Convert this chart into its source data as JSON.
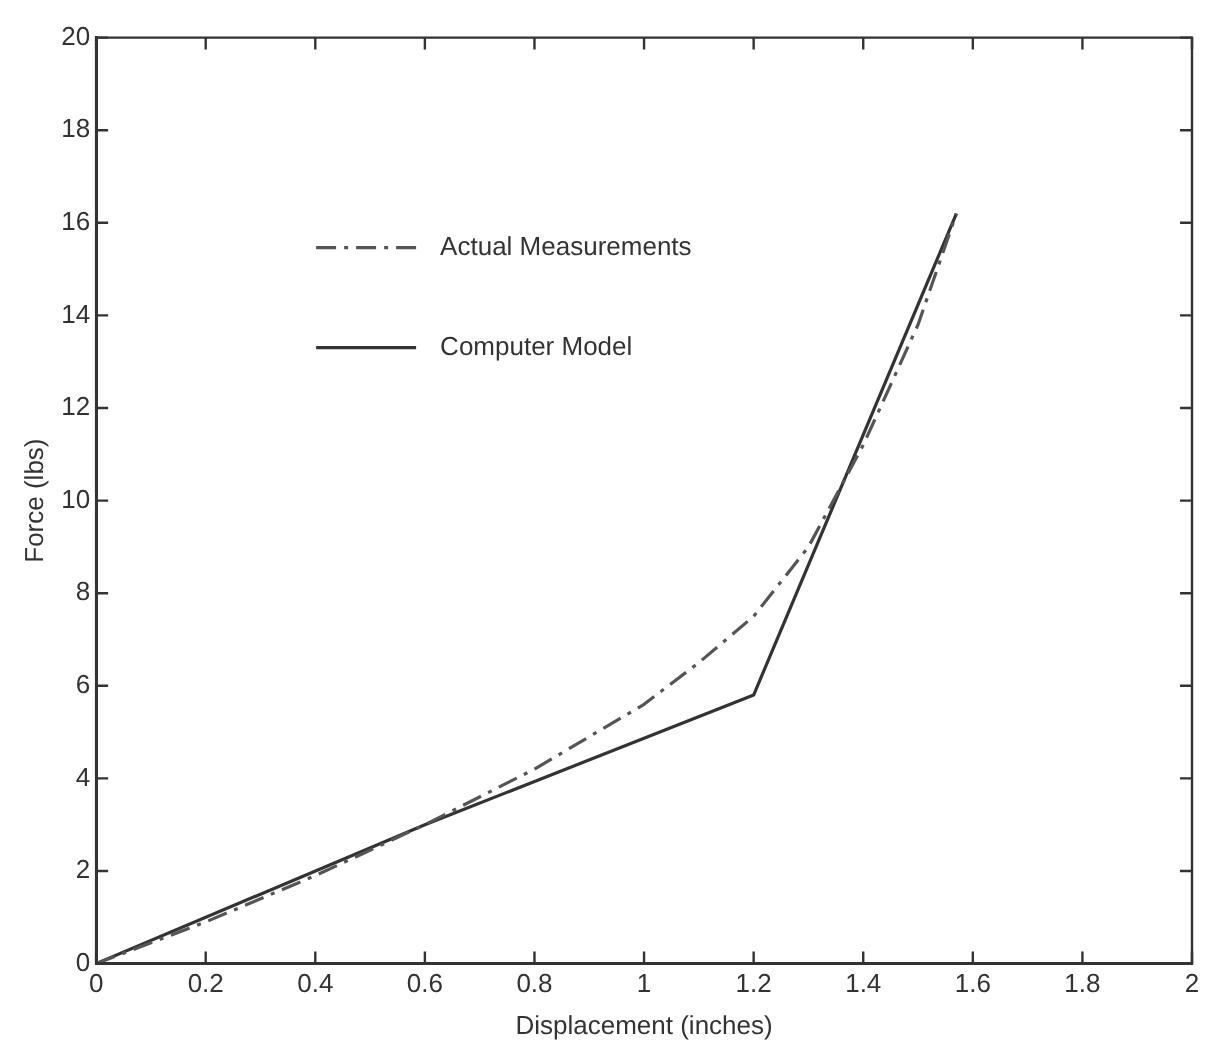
{
  "chart_data": {
    "type": "line",
    "xlabel": "Displacement (inches)",
    "ylabel": "Force (lbs)",
    "series": [
      {
        "name": "Actual Measurements",
        "color": "#555555",
        "line_style": "dashed",
        "x": [
          0,
          0.2,
          0.4,
          0.6,
          0.8,
          1.0,
          1.1,
          1.2,
          1.3,
          1.4,
          1.5,
          1.57
        ],
        "values": [
          0,
          0.9,
          1.9,
          3.0,
          4.2,
          5.6,
          6.5,
          7.5,
          9.0,
          11.2,
          13.8,
          16.2
        ]
      },
      {
        "name": "Computer Model",
        "color": "#333333",
        "line_style": "solid",
        "x": [
          0,
          0.6,
          1.2,
          1.57
        ],
        "values": [
          0,
          3.0,
          5.8,
          16.2
        ]
      }
    ],
    "xlim": [
      0,
      2
    ],
    "xticks": [
      0,
      0.2,
      0.4,
      0.6,
      0.8,
      1,
      1.2,
      1.4,
      1.6,
      1.8,
      2
    ],
    "ylim": [
      0,
      20
    ],
    "yticks": [
      0,
      2,
      4,
      6,
      8,
      10,
      12,
      14,
      16,
      18,
      20
    ],
    "grid": false,
    "legend": "top left",
    "marker": "none"
  }
}
